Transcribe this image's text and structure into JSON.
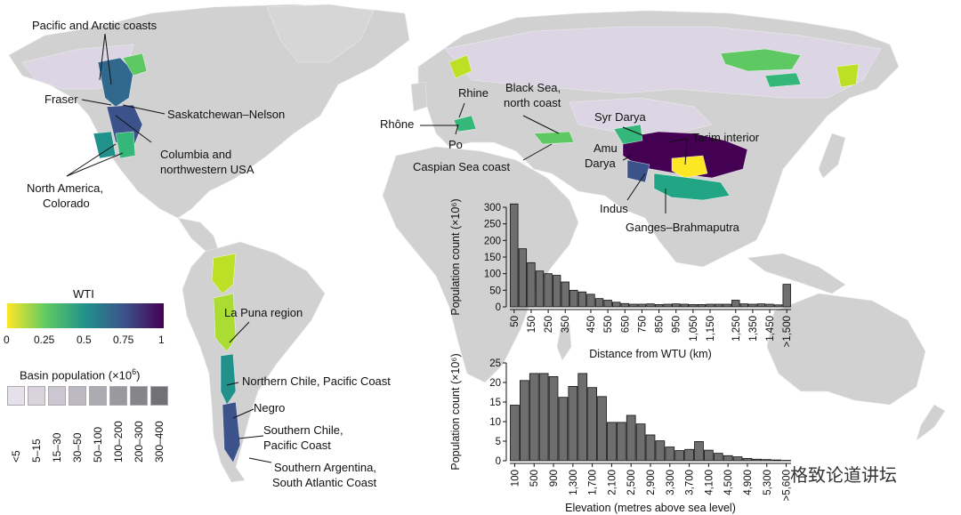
{
  "map_labels": {
    "pacific_arctic": "Pacific and Arctic coasts",
    "fraser": "Fraser",
    "saskatchewan": "Saskatchewan–Nelson",
    "columbia_1": "Columbia and",
    "columbia_2": "northwestern USA",
    "na_colorado_1": "North America,",
    "na_colorado_2": "Colorado",
    "rhine": "Rhine",
    "rhone": "Rhône",
    "po": "Po",
    "black_sea_1": "Black Sea,",
    "black_sea_2": "north coast",
    "caspian": "Caspian Sea coast",
    "syr_darya": "Syr Darya",
    "tarim": "Tarim interior",
    "amu_1": "Amu",
    "amu_2": "Darya",
    "indus": "Indus",
    "ganges": "Ganges–Brahmaputra",
    "la_puna": "La Puna region",
    "northern_chile": "Northern Chile, Pacific Coast",
    "negro": "Negro",
    "southern_chile_1": "Southern Chile,",
    "southern_chile_2": "Pacific Coast",
    "southern_arg_1": "Southern Argentina,",
    "southern_arg_2": "South Atlantic Coast"
  },
  "wti_legend": {
    "title": "WTI",
    "ticks": [
      "0",
      "0.25",
      "0.5",
      "0.75",
      "1"
    ],
    "colors": [
      "#fde725",
      "#5ec962",
      "#21918c",
      "#3b528b",
      "#440154"
    ]
  },
  "population_legend": {
    "title": "Basin population (×10",
    "title_sup": "6",
    "title_end": ")",
    "classes": [
      "<5",
      "5–15",
      "15–30",
      "30–50",
      "50–100",
      "100–200",
      "200–300",
      "300–400"
    ],
    "colors": [
      "#e6e0ea",
      "#d9d3de",
      "#cbc6d0",
      "#bdb9c2",
      "#adabb2",
      "#9a999e",
      "#86868a",
      "#727276"
    ]
  },
  "watermark": "格致论道讲坛",
  "chart_data": [
    {
      "type": "bar",
      "xlabel": "Distance from WTU (km)",
      "ylabel": "Population count (×10⁶)",
      "ylim": [
        0,
        300
      ],
      "yticks": [
        0,
        50,
        100,
        150,
        200,
        250,
        300
      ],
      "tick_labels": [
        "50",
        "150",
        "250",
        "350",
        "450",
        "550",
        "650",
        "750",
        "850",
        "950",
        "1,050",
        "1,150",
        "1,250",
        "1,350",
        "1,450",
        ">1,500"
      ],
      "values": [
        310,
        175,
        133,
        108,
        100,
        95,
        75,
        50,
        45,
        38,
        25,
        20,
        14,
        10,
        8,
        8,
        9,
        7,
        8,
        9,
        8,
        7,
        7,
        8,
        8,
        8,
        20,
        9,
        8,
        9,
        8,
        6,
        68
      ],
      "bar_color": "#6e6e6e"
    },
    {
      "type": "bar",
      "xlabel": "Elevation (metres above sea level)",
      "ylabel": "Population count (×10⁶)",
      "ylim": [
        0,
        25
      ],
      "yticks": [
        0,
        5,
        10,
        15,
        20,
        25
      ],
      "tick_labels": [
        "100",
        "500",
        "900",
        "1,300",
        "1,700",
        "2,100",
        "2,500",
        "2,900",
        "3,300",
        "3,700",
        "4,100",
        "4,500",
        "4,900",
        "5,300",
        ">5,600"
      ],
      "values": [
        14.2,
        20.5,
        22.3,
        22.3,
        21.5,
        16.2,
        19.0,
        22.3,
        18.7,
        16.4,
        9.8,
        9.8,
        11.6,
        9.4,
        6.6,
        5.1,
        3.5,
        2.6,
        2.9,
        4.9,
        2.7,
        1.9,
        1.3,
        1.0,
        0.6,
        0.4,
        0.3,
        0.2,
        0.1
      ],
      "bar_color": "#6e6e6e"
    }
  ]
}
